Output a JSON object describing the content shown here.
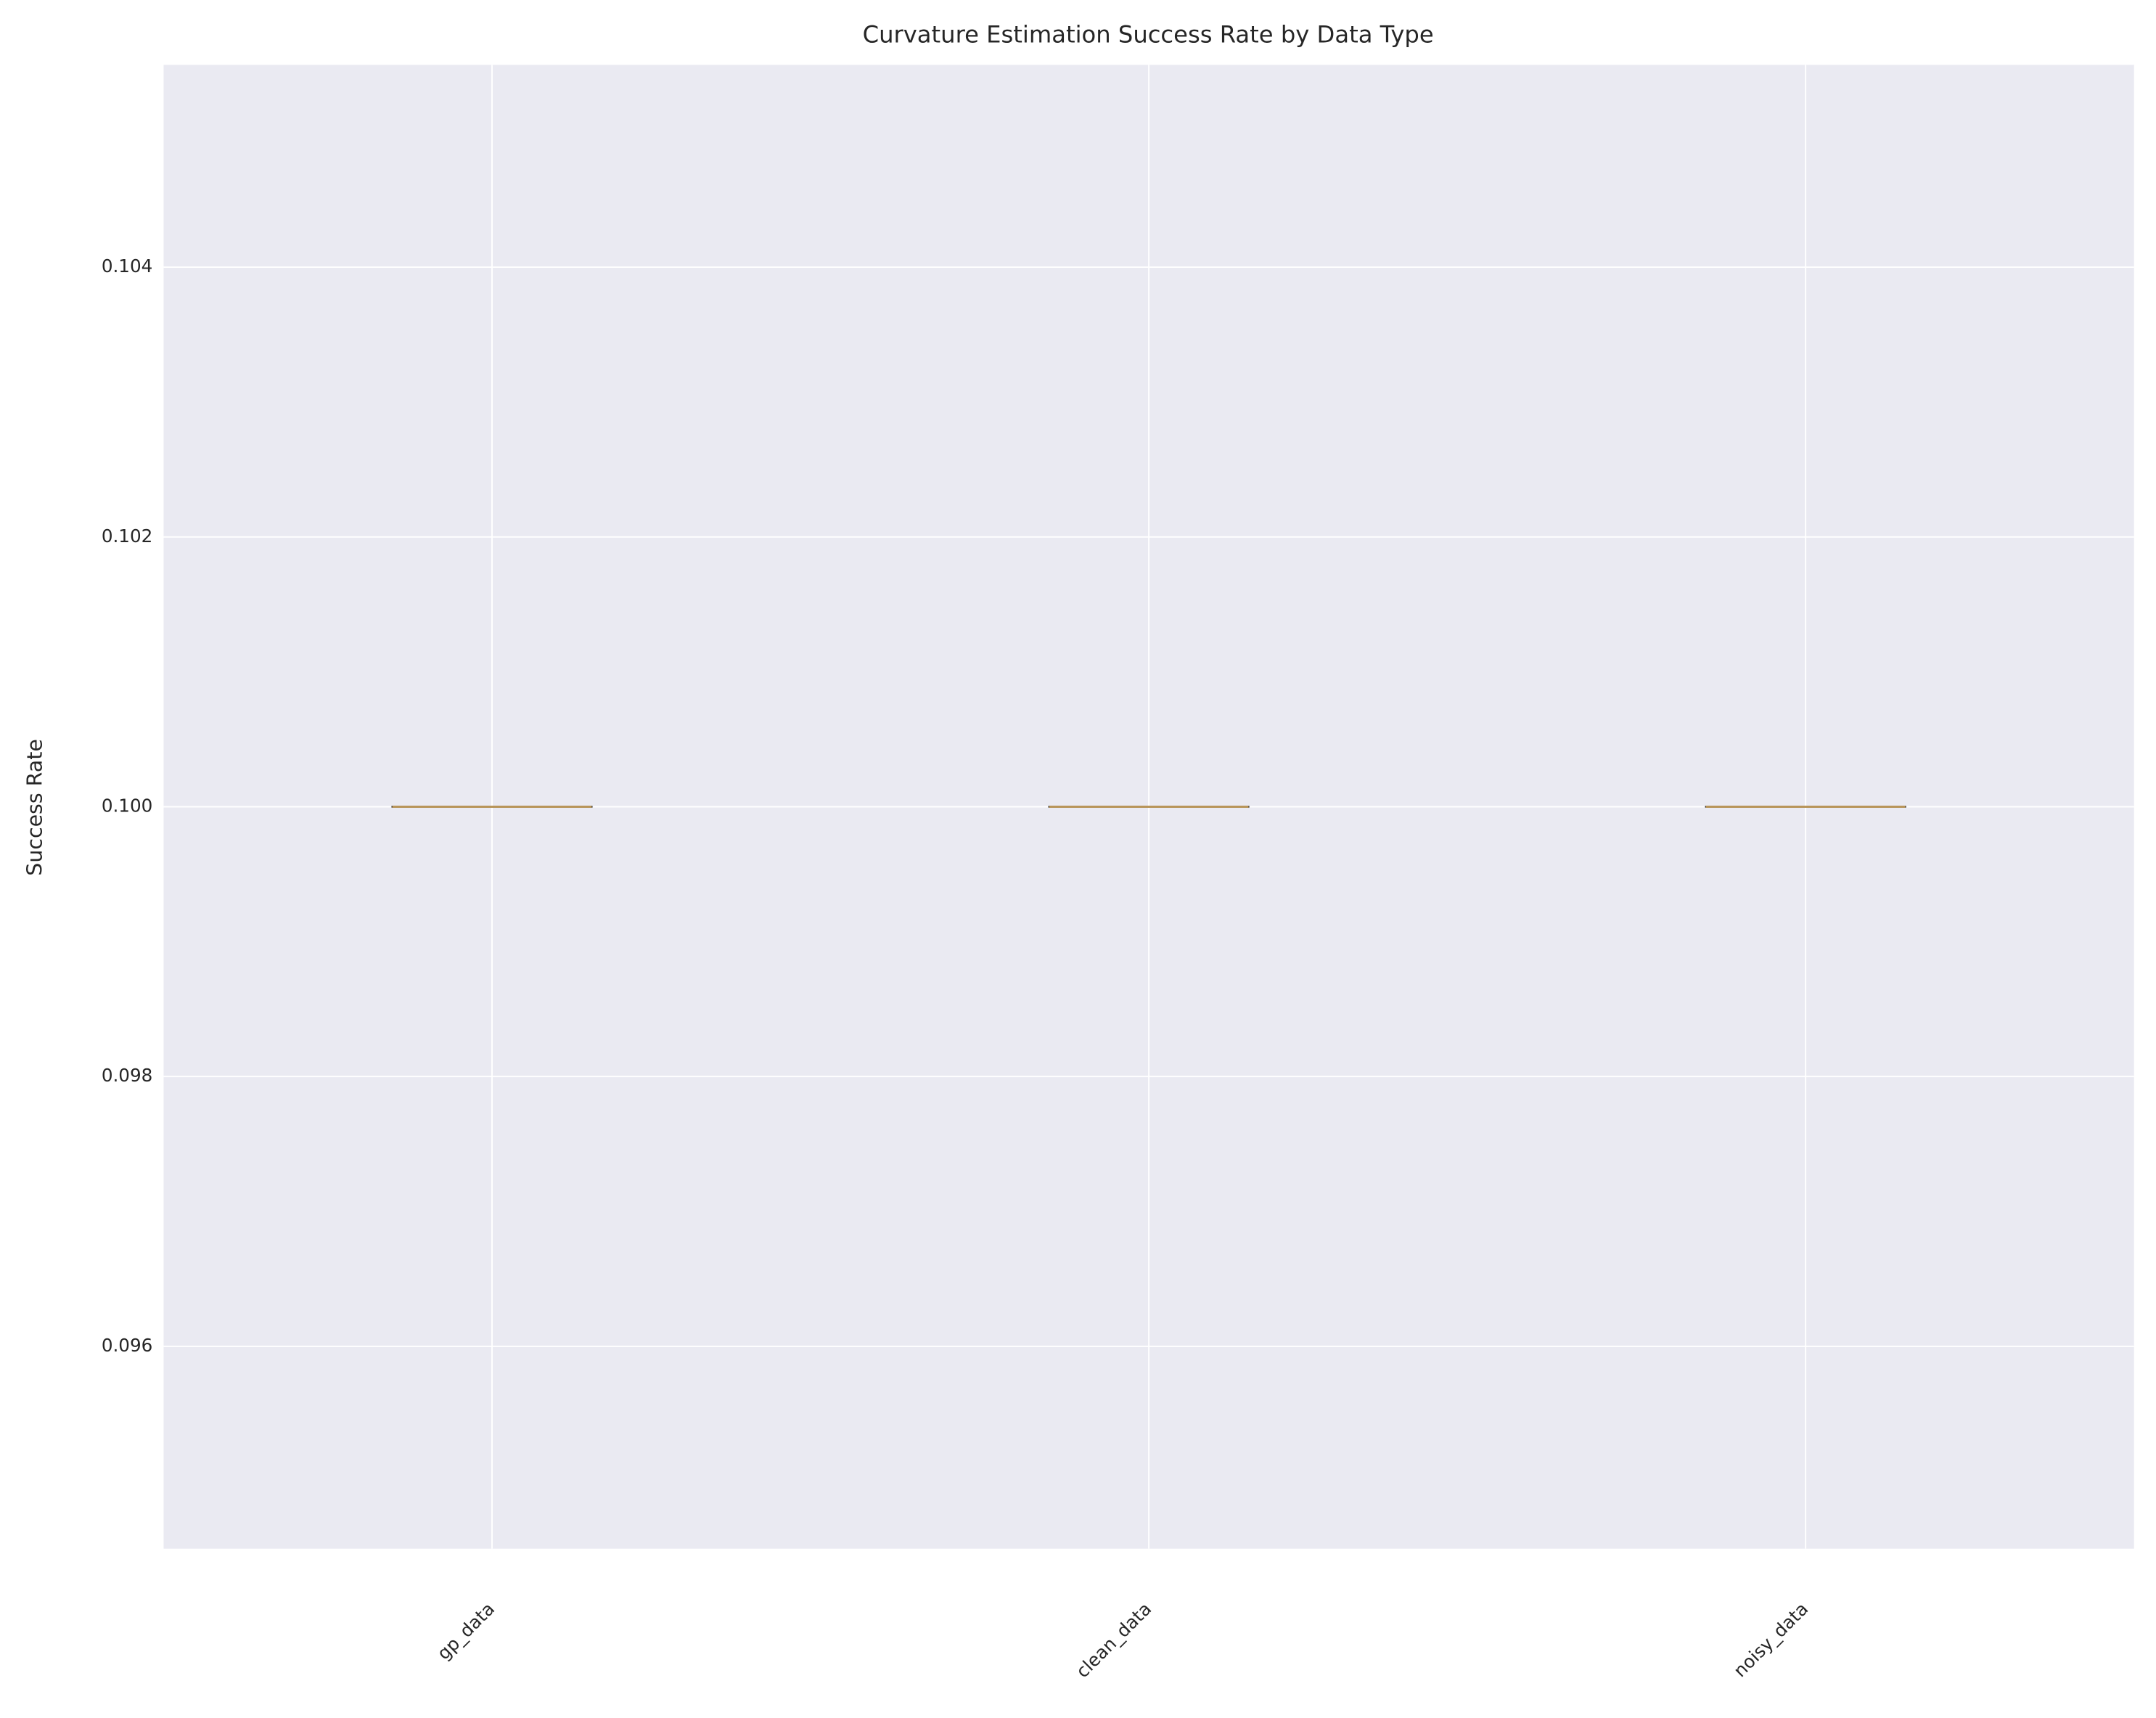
{
  "chart_data": {
    "type": "box",
    "title": "Curvature Estimation Success Rate by Data Type",
    "y_label": "Success Rate",
    "categories": [
      "gp_data",
      "clean_data",
      "noisy_data"
    ],
    "series": [
      {
        "color": "#b8955a",
        "min": [
          0.1,
          0.1,
          0.1
        ],
        "q1": [
          0.1,
          0.1,
          0.1
        ],
        "median": [
          0.1,
          0.1,
          0.1
        ],
        "q3": [
          0.1,
          0.1,
          0.1
        ],
        "max": [
          0.1,
          0.1,
          0.1
        ]
      }
    ],
    "ylim": [
      0.0945,
      0.1055
    ],
    "yticks": [
      0.096,
      0.098,
      {
        "value": 0.1,
        "label": "0.100"
      },
      0.102,
      0.104
    ],
    "grid": true,
    "background": "#eaeaf2"
  }
}
